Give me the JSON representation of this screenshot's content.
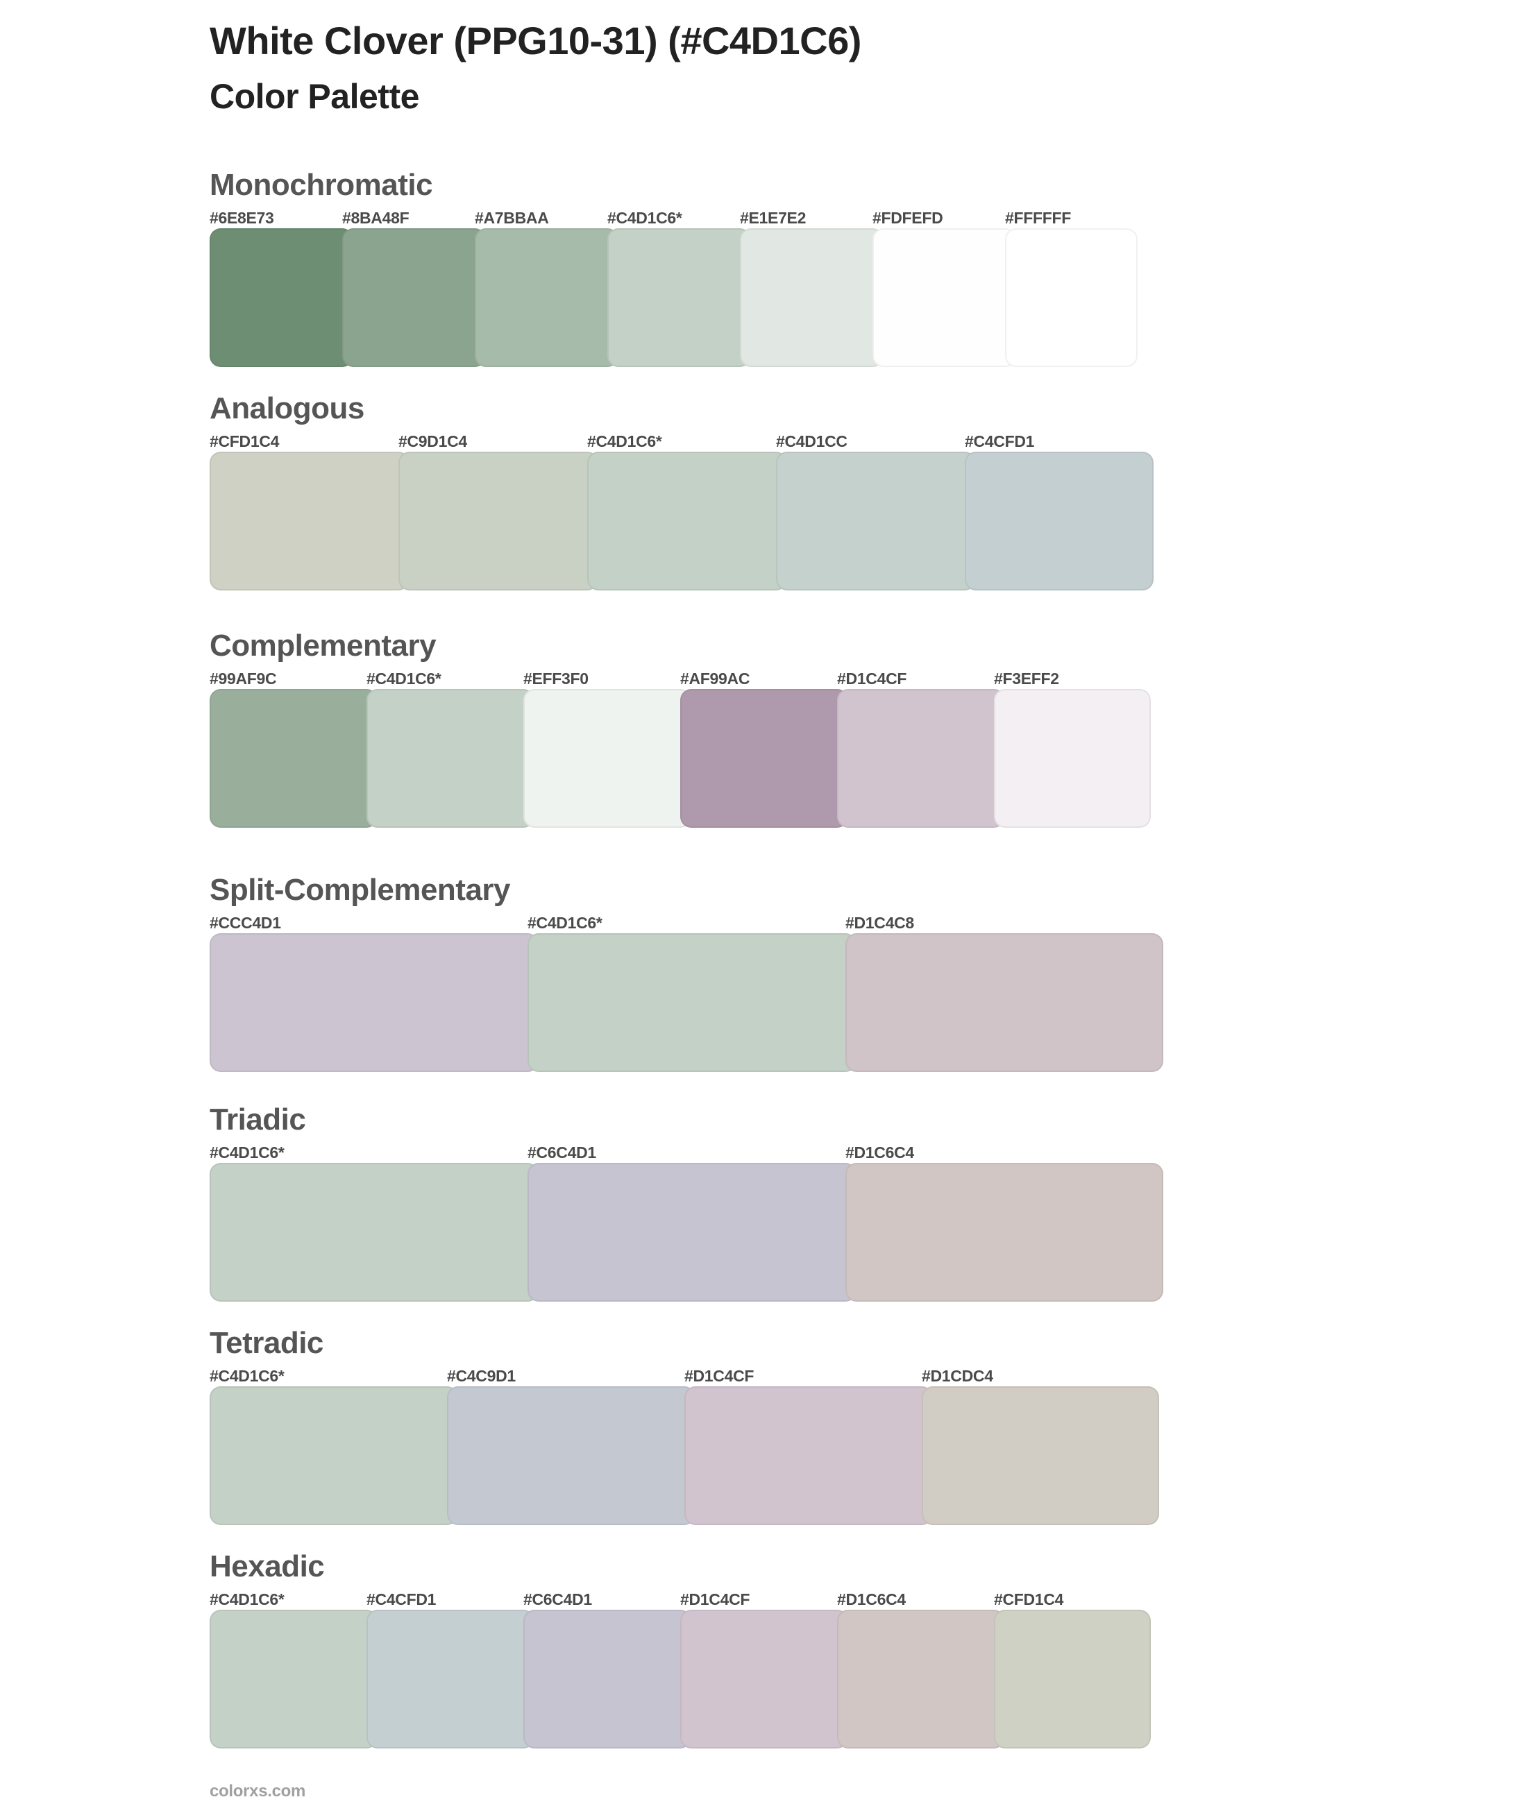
{
  "header": {
    "title": "White Clover (PPG10-31) (#C4D1C6)",
    "subtitle": "Color Palette"
  },
  "base_color": "#C4D1C6",
  "sections": [
    {
      "name": "Monochromatic",
      "swatches": [
        {
          "label": "#6E8E73",
          "color": "#6E8E73"
        },
        {
          "label": "#8BA48F",
          "color": "#8BA48F"
        },
        {
          "label": "#A7BBAA",
          "color": "#A7BBAA"
        },
        {
          "label": "#C4D1C6*",
          "color": "#C4D1C6"
        },
        {
          "label": "#E1E7E2",
          "color": "#E1E7E2"
        },
        {
          "label": "#FDFEFD",
          "color": "#FDFEFD"
        },
        {
          "label": "#FFFFFF",
          "color": "#FFFFFF"
        }
      ]
    },
    {
      "name": "Analogous",
      "swatches": [
        {
          "label": "#CFD1C4",
          "color": "#CFD1C4"
        },
        {
          "label": "#C9D1C4",
          "color": "#C9D1C4"
        },
        {
          "label": "#C4D1C6*",
          "color": "#C4D1C6"
        },
        {
          "label": "#C4D1CC",
          "color": "#C4D1CC"
        },
        {
          "label": "#C4CFD1",
          "color": "#C4CFD1"
        }
      ]
    },
    {
      "name": "Complementary",
      "swatches": [
        {
          "label": "#99AF9C",
          "color": "#99AF9C"
        },
        {
          "label": "#C4D1C6*",
          "color": "#C4D1C6"
        },
        {
          "label": "#EFF3F0",
          "color": "#EFF3F0"
        },
        {
          "label": "#AF99AC",
          "color": "#AF99AC"
        },
        {
          "label": "#D1C4CF",
          "color": "#D1C4CF"
        },
        {
          "label": "#F3EFF2",
          "color": "#F3EFF2"
        }
      ]
    },
    {
      "name": "Split-Complementary",
      "swatches": [
        {
          "label": "#CCC4D1",
          "color": "#CCC4D1"
        },
        {
          "label": "#C4D1C6*",
          "color": "#C4D1C6"
        },
        {
          "label": "#D1C4C8",
          "color": "#D1C4C8"
        }
      ]
    },
    {
      "name": "Triadic",
      "swatches": [
        {
          "label": "#C4D1C6*",
          "color": "#C4D1C6"
        },
        {
          "label": "#C6C4D1",
          "color": "#C6C4D1"
        },
        {
          "label": "#D1C6C4",
          "color": "#D1C6C4"
        }
      ]
    },
    {
      "name": "Tetradic",
      "swatches": [
        {
          "label": "#C4D1C6*",
          "color": "#C4D1C6"
        },
        {
          "label": "#C4C9D1",
          "color": "#C4C9D1"
        },
        {
          "label": "#D1C4CF",
          "color": "#D1C4CF"
        },
        {
          "label": "#D1CDC4",
          "color": "#D1CDC4"
        }
      ]
    },
    {
      "name": "Hexadic",
      "swatches": [
        {
          "label": "#C4D1C6*",
          "color": "#C4D1C6"
        },
        {
          "label": "#C4CFD1",
          "color": "#C4CFD1"
        },
        {
          "label": "#C6C4D1",
          "color": "#C6C4D1"
        },
        {
          "label": "#D1C4CF",
          "color": "#D1C4CF"
        },
        {
          "label": "#D1C6C4",
          "color": "#D1C6C4"
        },
        {
          "label": "#CFD1C4",
          "color": "#CFD1C4"
        }
      ]
    }
  ],
  "footer": {
    "text": "colorxs.com"
  }
}
